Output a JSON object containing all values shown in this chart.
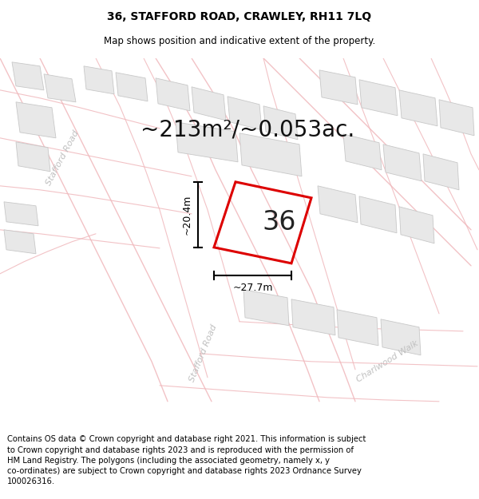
{
  "title": "36, STAFFORD ROAD, CRAWLEY, RH11 7LQ",
  "subtitle": "Map shows position and indicative extent of the property.",
  "area_label": "~213m²/~0.053ac.",
  "property_number": "36",
  "width_label": "~27.7m",
  "height_label": "~20.4m",
  "footer": "Contains OS data © Crown copyright and database right 2021. This information is subject to Crown copyright and database rights 2023 and is reproduced with the permission of HM Land Registry. The polygons (including the associated geometry, namely x, y co-ordinates) are subject to Crown copyright and database rights 2023 Ordnance Survey 100026316.",
  "bg_color": "#ffffff",
  "building_color": "#e8e8e8",
  "building_edge_color": "#c8c8c8",
  "road_line_color": "#f0b8bc",
  "property_outline_color": "#dd0000",
  "title_fontsize": 10,
  "subtitle_fontsize": 8.5,
  "area_fontsize": 20,
  "number_fontsize": 24,
  "dim_fontsize": 9,
  "road_label_color": "#c0c0c0",
  "road_label_fontsize": 8,
  "footer_fontsize": 7.2
}
